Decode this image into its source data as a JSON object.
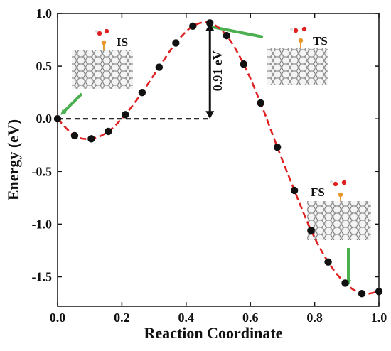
{
  "chart_data": {
    "type": "line",
    "title": "",
    "xlabel": "Reaction Coordinate",
    "ylabel": "Energy (eV)",
    "xlim": [
      0.0,
      1.0
    ],
    "ylim": [
      -1.78,
      1.0
    ],
    "x_ticks": [
      "0.0",
      "0.2",
      "0.4",
      "0.6",
      "0.8",
      "1.0"
    ],
    "y_ticks": [
      "1.0",
      "0.5",
      "0.0",
      "-0.5",
      "-1.0",
      "-1.5"
    ],
    "y_tick_values": [
      1.0,
      0.5,
      0.0,
      -0.5,
      -1.0,
      -1.5
    ],
    "x_tick_values": [
      0.0,
      0.2,
      0.4,
      0.6,
      0.8,
      1.0
    ],
    "series": [
      {
        "color": "#e02020",
        "marker_color": "#111111",
        "line_style": "dashed",
        "x": [
          0.0,
          0.053,
          0.105,
          0.158,
          0.211,
          0.263,
          0.316,
          0.368,
          0.421,
          0.474,
          0.526,
          0.579,
          0.632,
          0.684,
          0.737,
          0.789,
          0.842,
          0.895,
          0.947,
          1.0
        ],
        "y": [
          0.0,
          -0.16,
          -0.19,
          -0.12,
          0.04,
          0.25,
          0.49,
          0.72,
          0.88,
          0.91,
          0.79,
          0.52,
          0.15,
          -0.27,
          -0.68,
          -1.06,
          -1.36,
          -1.56,
          -1.66,
          -1.64
        ]
      }
    ],
    "annotations": {
      "barrier": "0.91 eV",
      "barrier_value": 0.91,
      "states": [
        "IS",
        "TS",
        "FS"
      ]
    },
    "grid": false,
    "legend": "none",
    "arrow_color": "#4caf50"
  }
}
